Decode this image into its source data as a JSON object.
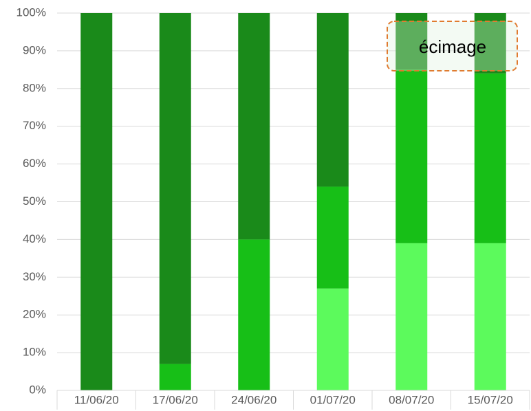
{
  "chart_data": {
    "type": "stacked_bar",
    "categories": [
      "11/06/20",
      "17/06/20",
      "24/06/20",
      "01/07/20",
      "08/07/20",
      "15/07/20"
    ],
    "series": [
      {
        "color": "#5cfa5c",
        "values": [
          0,
          0,
          0,
          27,
          39,
          39
        ]
      },
      {
        "color": "#17bf17",
        "values": [
          0,
          7,
          40,
          27,
          46,
          45
        ]
      },
      {
        "color": "#1a8a1a",
        "values": [
          100,
          93,
          60,
          46,
          15,
          16
        ]
      }
    ],
    "ylim": [
      0,
      100
    ],
    "yticks": [
      {
        "value": 0,
        "label": "0%"
      },
      {
        "value": 10,
        "label": "10%"
      },
      {
        "value": 20,
        "label": "20%"
      },
      {
        "value": 30,
        "label": "30%"
      },
      {
        "value": 40,
        "label": "40%"
      },
      {
        "value": 50,
        "label": "50%"
      },
      {
        "value": 60,
        "label": "60%"
      },
      {
        "value": 70,
        "label": "70%"
      },
      {
        "value": 80,
        "label": "80%"
      },
      {
        "value": 90,
        "label": "90%"
      },
      {
        "value": 100,
        "label": "100%"
      }
    ],
    "grid": true,
    "annotation": "écimage"
  }
}
